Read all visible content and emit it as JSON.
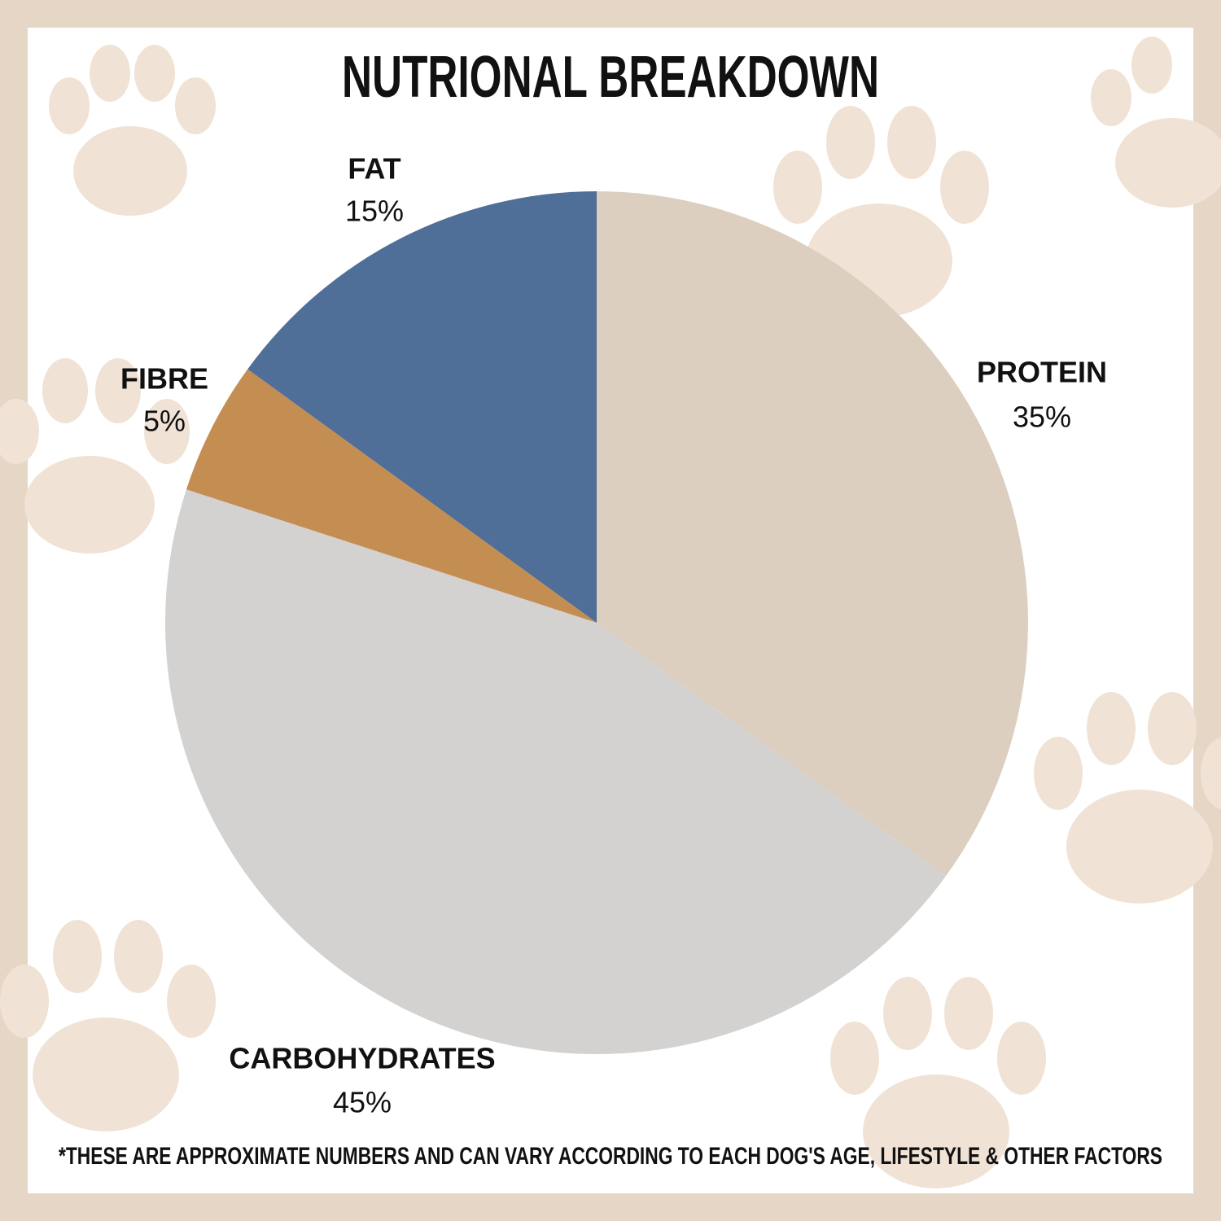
{
  "chart_data": {
    "type": "pie",
    "title": "NUTRIONAL BREAKDOWN",
    "categories": [
      "PROTEIN",
      "CARBOHYDRATES",
      "FIBRE",
      "FAT"
    ],
    "values": [
      35,
      45,
      5,
      15
    ],
    "value_labels": [
      "35%",
      "45%",
      "5%",
      "15%"
    ],
    "colors": [
      "#dccfc0",
      "#d3d2d0",
      "#c48d52",
      "#4f6e98"
    ],
    "annotation": "*THESE ARE APPROXIMATE NUMBERS AND CAN VARY ACCORDING TO EACH DOG'S AGE, LIFESTYLE & OTHER FACTORS"
  }
}
